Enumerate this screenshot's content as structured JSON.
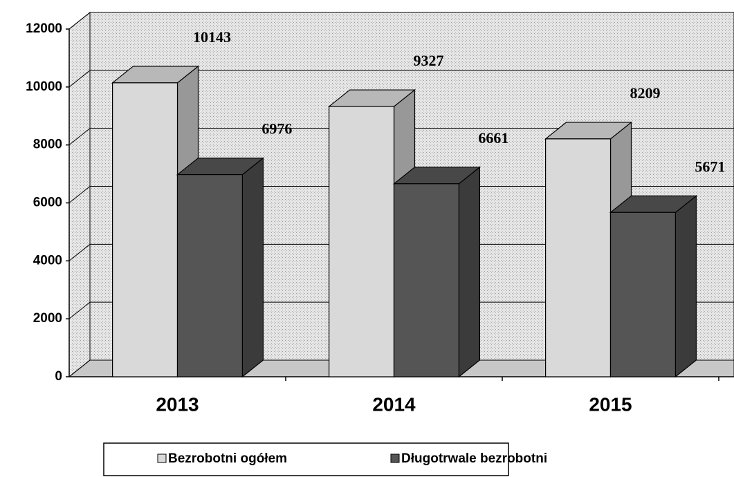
{
  "chart_data": {
    "type": "bar3d",
    "categories": [
      "2013",
      "2014",
      "2015"
    ],
    "series": [
      {
        "name": "Bezrobotni ogółem",
        "color": "#d9d9d9",
        "values": [
          10143,
          9327,
          8209
        ]
      },
      {
        "name": "Długotrwale bezrobotni",
        "color": "#555555",
        "values": [
          6976,
          6661,
          5671
        ]
      }
    ],
    "ylim": [
      0,
      12000
    ],
    "yticks": [
      0,
      2000,
      4000,
      6000,
      8000,
      10000,
      12000
    ],
    "grid": true,
    "legend": "bottom"
  }
}
